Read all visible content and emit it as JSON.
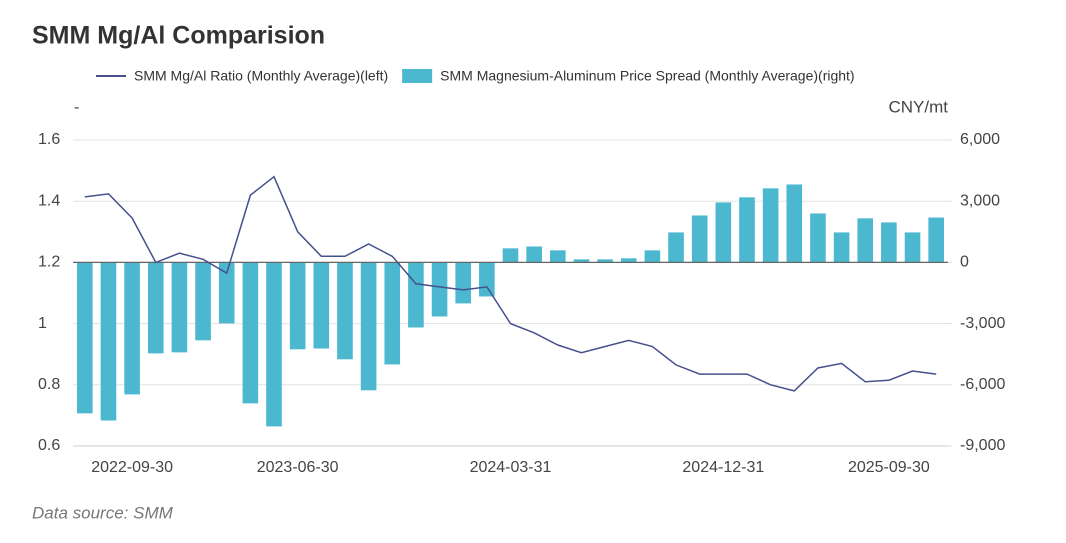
{
  "chart_data": {
    "type": "bar_line",
    "title": "SMM Mg/Al Comparision",
    "ylabel": "-",
    "y2label": "CNY/mt",
    "source": "Data source:  SMM",
    "categories": [
      null,
      null,
      "2022-09-30",
      null,
      null,
      null,
      null,
      null,
      null,
      "2023-06-30",
      null,
      null,
      null,
      null,
      null,
      null,
      null,
      null,
      "2024-03-31",
      null,
      null,
      null,
      null,
      null,
      null,
      null,
      null,
      "2024-12-31",
      null,
      null,
      null,
      null,
      null,
      null,
      "2025-09-30",
      null,
      null
    ],
    "series": [
      {
        "name": "SMM Mg/Al Ratio (Monthly Average)(left)",
        "type": "line",
        "color": "#46508c",
        "values": [
          1.414,
          1.424,
          1.345,
          1.2,
          1.23,
          1.21,
          1.165,
          1.42,
          1.48,
          1.3,
          1.22,
          1.22,
          1.26,
          1.22,
          1.13,
          1.12,
          1.11,
          1.12,
          1.0,
          0.97,
          0.93,
          0.905,
          0.925,
          0.945,
          0.925,
          0.865,
          0.835,
          0.835,
          0.835,
          0.8,
          0.78,
          0.855,
          0.87,
          0.81,
          0.815,
          0.845,
          0.835
        ]
      },
      {
        "name": "SMM Magnesium-Aluminum Price Spread (Monthly Average)(right)",
        "type": "bar",
        "axis": "y2",
        "color": "#4bb8cf",
        "values": [
          -7400,
          -7750,
          -6470,
          -4460,
          -4410,
          -3820,
          -2990,
          -6910,
          -8040,
          -4260,
          -4220,
          -4750,
          -6270,
          -5000,
          -3190,
          -2650,
          -2010,
          -1670,
          690,
          780,
          590,
          150,
          150,
          200,
          590,
          1470,
          2300,
          2940,
          3190,
          3630,
          3820,
          2400,
          1470,
          2160,
          1960,
          1470,
          2200
        ]
      }
    ],
    "ylim": [
      0.6,
      1.6
    ],
    "yticks": [
      0.6,
      0.8,
      1,
      1.2,
      1.4,
      1.6
    ],
    "y2lim": [
      -9000,
      6000
    ],
    "y2ticks": [
      {
        "value": -9000,
        "label": "-9,000"
      },
      {
        "value": -6000,
        "label": "-6,000"
      },
      {
        "value": -3000,
        "label": "-3,000"
      },
      0,
      {
        "value": 3000,
        "label": "3,000"
      },
      {
        "value": 6000,
        "label": "6,000"
      }
    ],
    "grid": true
  }
}
